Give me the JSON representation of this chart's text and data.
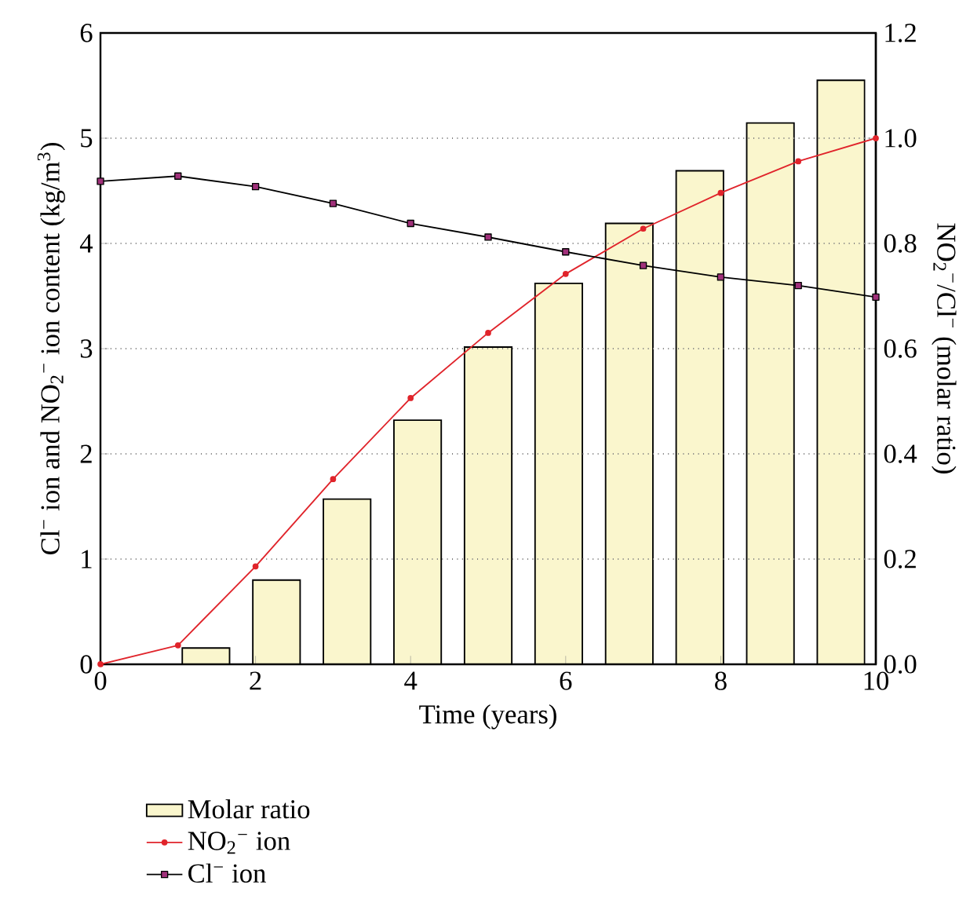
{
  "chart_data": {
    "type": "line",
    "xlabel": "Time (years)",
    "ylabel": "Cl$^{−}$ ion and NO$_{2}$$^{−}$ ion content (kg/m$^{3}$)",
    "y2label": "NO$_{2}$$^{−}$/Cl$^{−}$ (molar ratio)",
    "xlim": [
      0,
      10
    ],
    "xticks": [
      0,
      2,
      4,
      6,
      8,
      10
    ],
    "ylim": [
      0,
      6
    ],
    "yticks": [
      0,
      1,
      2,
      3,
      4,
      5,
      6
    ],
    "y2lim": [
      0,
      1.2
    ],
    "y2ticks": [
      {
        "value": 0,
        "label": "0.0"
      },
      {
        "value": 0.2,
        "label": "0.2"
      },
      {
        "value": 0.4,
        "label": "0.4"
      },
      {
        "value": 0.6,
        "label": "0.6"
      },
      {
        "value": 0.8,
        "label": "0.8"
      },
      {
        "value": 1.0,
        "label": "1.0"
      },
      {
        "value": 1.2,
        "label": "1.2"
      }
    ],
    "grid": "y",
    "legend": "bottom left",
    "series": [
      {
        "name": "Molar ratio",
        "type": "bar",
        "axis": "y2",
        "color": "#faf6cd",
        "x": [
          1.36,
          2.27,
          3.18,
          4.09,
          5.0,
          5.91,
          6.82,
          7.73,
          8.64,
          9.55
        ],
        "values": [
          0.031,
          0.16,
          0.314,
          0.464,
          0.603,
          0.724,
          0.838,
          0.938,
          1.029,
          1.11
        ]
      },
      {
        "name": "NO$_{2}$$^{−}$ ion",
        "color": "#e0242b",
        "marker": "circle",
        "x": [
          0,
          1,
          2,
          3,
          4,
          5,
          6,
          7,
          8,
          9,
          10
        ],
        "values": [
          0,
          0.18,
          0.93,
          1.76,
          2.53,
          3.15,
          3.71,
          4.14,
          4.48,
          4.78,
          5.0
        ]
      },
      {
        "name": "Cl$^{−}$ ion",
        "color": "#000000",
        "marker": "square",
        "x": [
          0,
          1,
          2,
          3,
          4,
          5,
          6,
          7,
          8,
          9,
          10
        ],
        "values": [
          4.59,
          4.64,
          4.54,
          4.38,
          4.19,
          4.06,
          3.92,
          3.79,
          3.68,
          3.6,
          3.49
        ]
      }
    ]
  }
}
